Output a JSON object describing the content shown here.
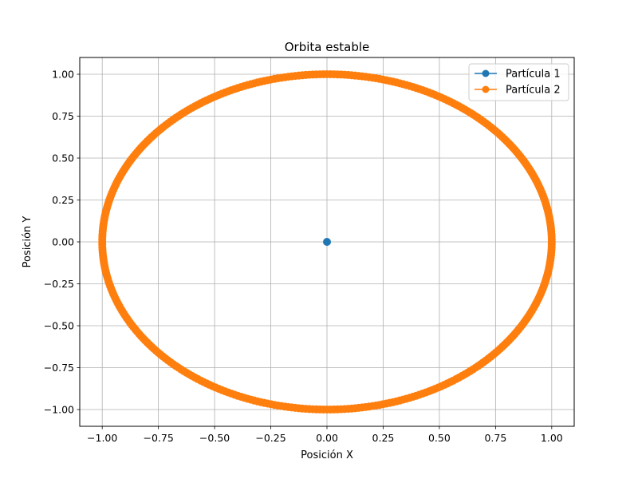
{
  "chart_data": {
    "type": "line",
    "title": "Orbita estable",
    "xlabel": "Posición X",
    "ylabel": "Posición Y",
    "xlim": [
      -1.1,
      1.1
    ],
    "ylim": [
      -1.1,
      1.1
    ],
    "xticks": [
      -1.0,
      -0.75,
      -0.5,
      -0.25,
      0.0,
      0.25,
      0.5,
      0.75,
      1.0
    ],
    "yticks": [
      -1.0,
      -0.75,
      -0.5,
      -0.25,
      0.0,
      0.25,
      0.5,
      0.75,
      1.0
    ],
    "xtick_labels": [
      "−1.00",
      "−0.75",
      "−0.50",
      "−0.25",
      "0.00",
      "0.25",
      "0.50",
      "0.75",
      "1.00"
    ],
    "ytick_labels": [
      "−1.00",
      "−0.75",
      "−0.50",
      "−0.25",
      "0.00",
      "0.25",
      "0.50",
      "0.75",
      "1.00"
    ],
    "grid": true,
    "legend_position": "top-right",
    "series": [
      {
        "name": "Partícula 1",
        "color": "#1f77b4",
        "marker": "circle",
        "points": [
          [
            0.0,
            0.0
          ]
        ]
      },
      {
        "name": "Partícula 2",
        "color": "#ff7f0e",
        "marker": "circle",
        "shape": "circle",
        "center": [
          0.0,
          0.0
        ],
        "radius": 1.0,
        "num_points": 400
      }
    ]
  }
}
